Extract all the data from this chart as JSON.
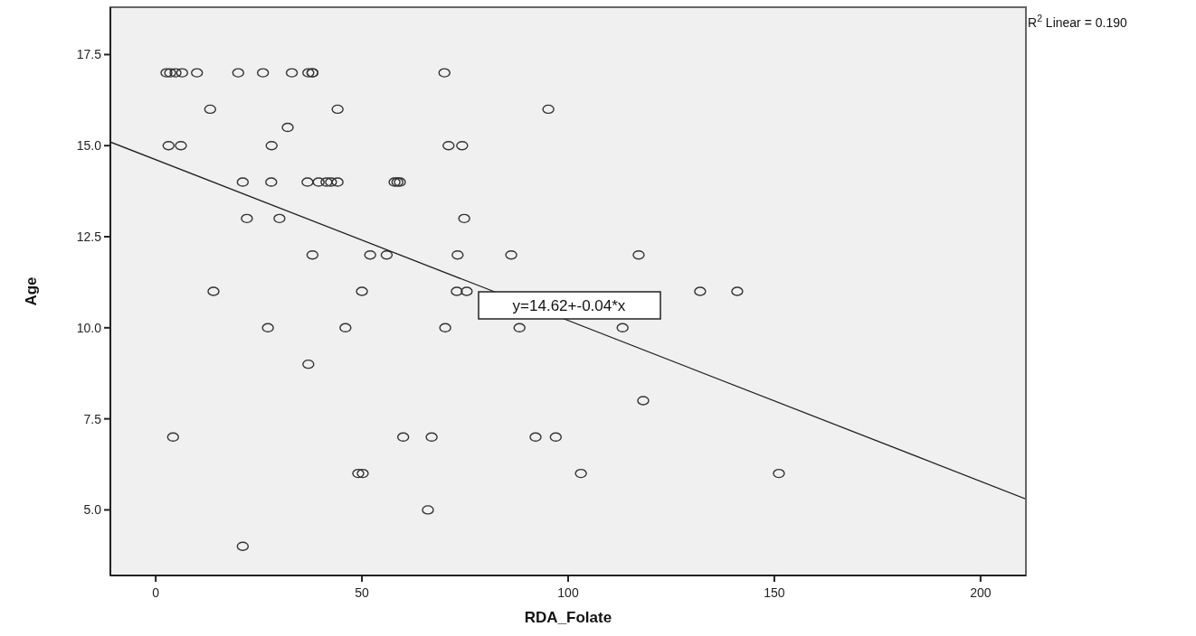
{
  "chart_data": {
    "type": "scatter",
    "xlabel": "RDA_Folate",
    "ylabel": "Age",
    "xlim": [
      -11,
      211
    ],
    "xticks": [
      0,
      50,
      100,
      150,
      200
    ],
    "ylim": [
      3.2,
      18.8
    ],
    "yticks": [
      {
        "value": 5,
        "label": "5.0"
      },
      {
        "value": 7.5,
        "label": "7.5"
      },
      {
        "value": 10,
        "label": "10.0"
      },
      {
        "value": 12.5,
        "label": "12.5"
      },
      {
        "value": 15,
        "label": "15.0"
      },
      {
        "value": 17.5,
        "label": "17.5"
      }
    ],
    "marker": "circle",
    "grid": false,
    "annotations": [
      "y=14.62+-0.04*x",
      "R$^{2}$ Linear = 0.190"
    ],
    "series": [
      {
        "color": "#333333",
        "x": [
          2.6,
          3.5,
          4.8,
          6.4,
          10,
          20,
          26,
          33,
          37,
          38,
          38,
          70,
          13.2,
          44.1,
          95.2,
          32,
          3.1,
          6.1,
          28.1,
          71,
          74.3,
          21.1,
          28,
          36.8,
          39.5,
          41.4,
          42.5,
          44.1,
          57.9,
          58.6,
          59.2,
          22.1,
          30,
          74.8,
          38,
          52,
          56,
          73.2,
          86.2,
          117.1,
          14,
          50,
          73,
          75.4,
          132,
          141,
          27.2,
          46,
          70.2,
          88.2,
          113.2,
          37,
          118.2,
          4.2,
          60,
          66.9,
          92.1,
          97,
          49.1,
          50.2,
          103.1,
          151.1,
          66,
          21.1
        ],
        "values": [
          17,
          17,
          17,
          17,
          17,
          17,
          17,
          17,
          17,
          17,
          17,
          17,
          16,
          16,
          16,
          15.5,
          15,
          15,
          15,
          15,
          15,
          14,
          14,
          14,
          14,
          14,
          14,
          14,
          14,
          14,
          14,
          13,
          13,
          13,
          12,
          12,
          12,
          12,
          12,
          12,
          11,
          11,
          11,
          11,
          11,
          11,
          10,
          10,
          10,
          10,
          10,
          9,
          8,
          7,
          7,
          7,
          7,
          7,
          6,
          6,
          6,
          6,
          5,
          4
        ]
      },
      {
        "type": "line",
        "marker": "none",
        "color": "#222222",
        "x": [
          -11,
          211
        ],
        "values": [
          15.1,
          5.3
        ]
      }
    ]
  }
}
